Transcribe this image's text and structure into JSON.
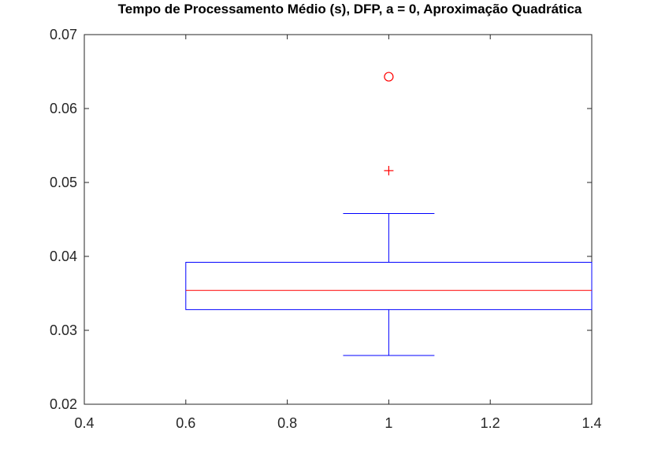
{
  "chart_data": {
    "type": "box",
    "title": "Tempo de Processamento Médio (s), DFP, a = 0, Aproximação Quadrática",
    "xlabel": "",
    "ylabel": "",
    "xlim": [
      0.4,
      1.4
    ],
    "ylim": [
      0.02,
      0.07
    ],
    "xticks": [
      "0.4",
      "0.6",
      "0.8",
      "1",
      "1.2",
      "1.4"
    ],
    "yticks": [
      "0.02",
      "0.03",
      "0.04",
      "0.05",
      "0.06",
      "0.07"
    ],
    "box": {
      "x": 1,
      "box_left": 0.6,
      "box_right": 1.4,
      "whisker_halfwidth": 0.09,
      "q1": 0.0328,
      "median": 0.0354,
      "q3": 0.0392,
      "whisker_low": 0.0266,
      "whisker_high": 0.0458
    },
    "outliers": [
      {
        "x": 1,
        "y": 0.0516,
        "marker": "plus"
      },
      {
        "x": 1,
        "y": 0.0643,
        "marker": "circle"
      }
    ],
    "colors": {
      "box": "#0000ff",
      "median": "#ff0000",
      "outlier": "#ff0000",
      "axes": "#262626"
    }
  }
}
